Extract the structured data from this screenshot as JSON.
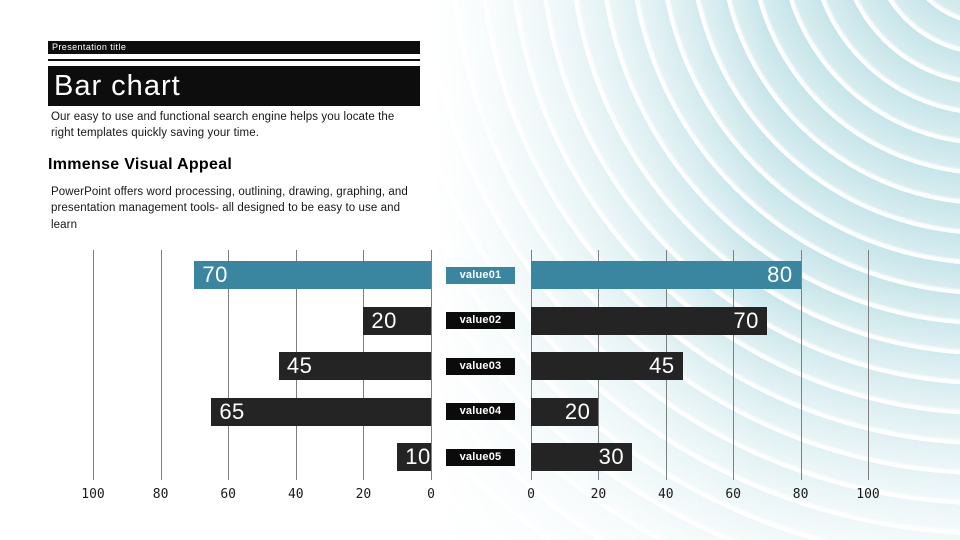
{
  "slide": {
    "presentation_title": "Presentation title",
    "title": "Bar chart",
    "subtitle": "Our easy to use and functional search engine helps you locate the\nright templates quickly saving your time.",
    "section_heading": "Immense Visual Appeal",
    "body": "PowerPoint offers word processing, outlining, drawing, graphing, and\npresentation management tools- all designed to be easy to use and\nlearn"
  },
  "colors": {
    "accent_teal": "#3A86A1",
    "bar_dark": "#242424",
    "label_black": "#0B0B0B",
    "title_bar_black": "#0D0D0D",
    "gridline_gray": "#7F7F7F",
    "background_curve_teal": "#C6E5EA"
  },
  "chart_data": {
    "type": "bar",
    "variant": "butterfly",
    "orientation": "horizontal",
    "categories": [
      "value01",
      "value02",
      "value03",
      "value04",
      "value05"
    ],
    "series": [
      {
        "name": "left",
        "values": [
          70,
          20,
          45,
          65,
          10
        ]
      },
      {
        "name": "right",
        "values": [
          80,
          70,
          45,
          20,
          30
        ]
      }
    ],
    "left_axis_ticks": [
      100,
      80,
      60,
      40,
      20,
      0
    ],
    "right_axis_ticks": [
      0,
      20,
      40,
      60,
      80,
      100
    ],
    "xlim": [
      0,
      100
    ],
    "highlight_category": "value01",
    "grid": true,
    "value_labels": "inside-end"
  }
}
